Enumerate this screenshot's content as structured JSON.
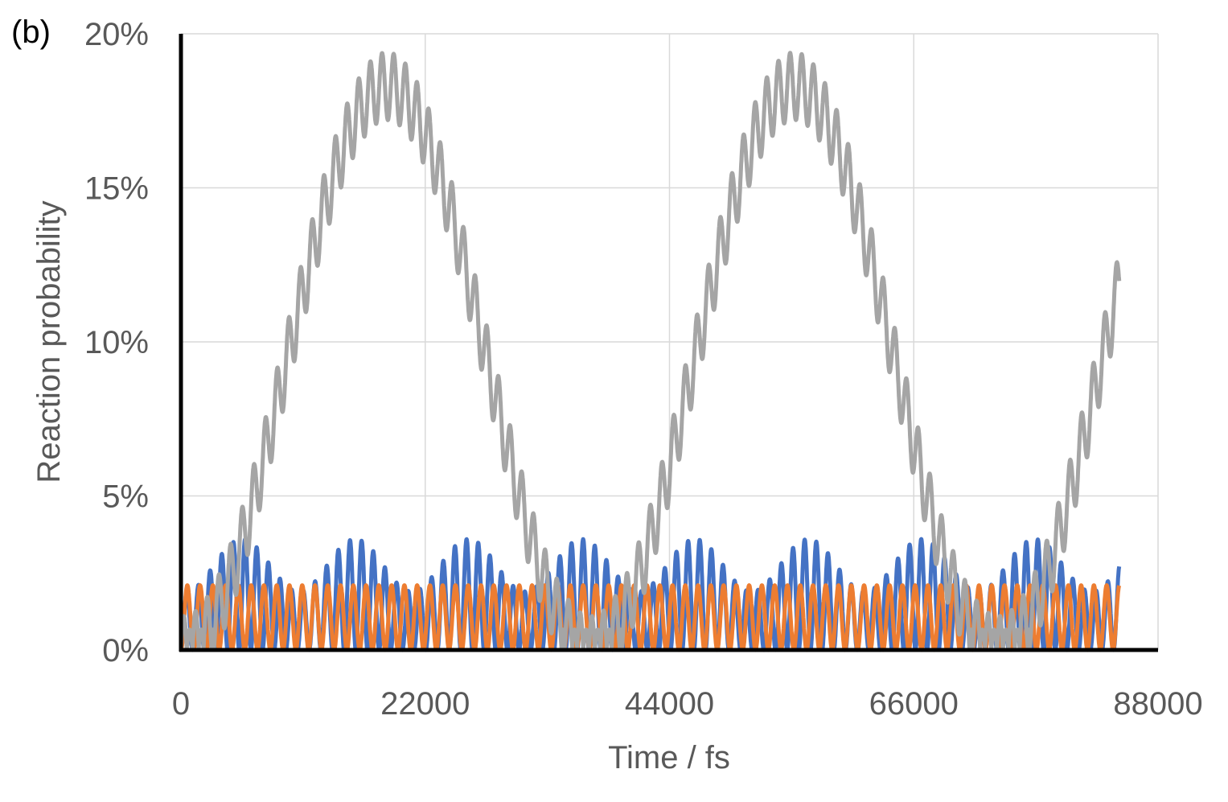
{
  "panel_label": "(b)",
  "chart_data": {
    "type": "line",
    "xlabel": "Time / fs",
    "ylabel": "Reaction probability",
    "xlim": [
      0,
      88000
    ],
    "ylim": [
      0,
      20
    ],
    "x_ticks": [
      0,
      22000,
      44000,
      66000,
      88000
    ],
    "x_tick_labels": [
      "0",
      "22000",
      "44000",
      "66000",
      "88000"
    ],
    "y_ticks": [
      0,
      5,
      10,
      15,
      20
    ],
    "y_tick_labels": [
      "0%",
      "5%",
      "10%",
      "15%",
      "20%"
    ],
    "grid": true,
    "legend": "none",
    "x_end": 84500,
    "series": [
      {
        "color": "#4472C4",
        "model": "oscillating envelope",
        "fast_period_fs": 1050,
        "envelope_period_fs": 10200,
        "peak_max": 3.6,
        "peak_min": 1.9,
        "baseline": 0.0
      },
      {
        "color": "#ED7D31",
        "model": "fast oscillation",
        "fast_period_fs": 1150,
        "max": 2.1,
        "min": 0.0
      },
      {
        "color": "#A5A5A5",
        "model": "slow oscillation with ripple",
        "slow_period_fs": 37500,
        "slow_peak": 18.3,
        "slow_peak_times_fs": [
          18500,
          55200
        ],
        "slow_min_times_fs": [
          36800,
          73600
        ],
        "ripple_period_fs": 1050,
        "ripple_amplitude": 1.1,
        "max": 19.3,
        "min": 0.0
      }
    ]
  }
}
